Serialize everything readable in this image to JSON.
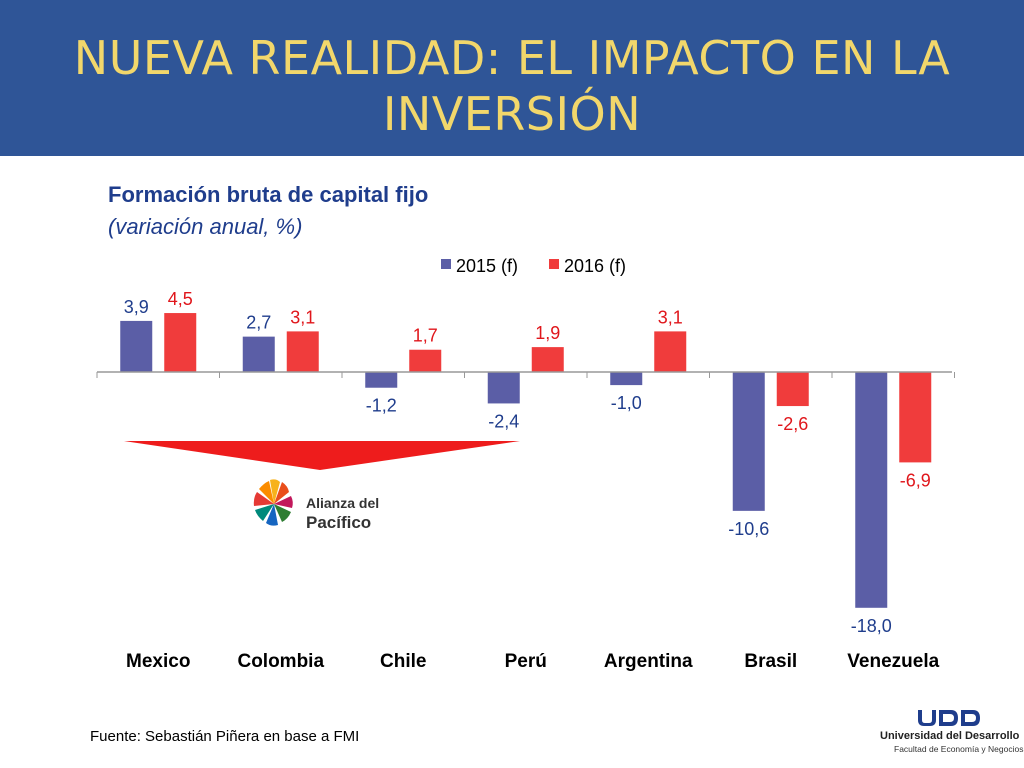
{
  "slide": {
    "title": "NUEVA REALIDAD: EL IMPACTO EN LA INVERSIÓN",
    "source": "Fuente: Sebastián Piñera en base a FMI"
  },
  "logos": {
    "alianza_line1": "Alianza del",
    "alianza_line2": "Pacífico",
    "udd_name": "Universidad del Desarrollo",
    "udd_sub": "Facultad de Economía y Negocios"
  },
  "colors": {
    "header_bg": "#2f5597",
    "title": "#f2d76b",
    "series_2015": "#5b5ea6",
    "series_2016": "#f03c3c",
    "label_2015": "#1f3d8c",
    "label_2016": "#e0161b",
    "arrow": "#ee1c1c"
  },
  "chart_data": {
    "type": "bar",
    "title": "Formación bruta de capital fijo",
    "subtitle": "(variación anual, %)",
    "categories": [
      "Mexico",
      "Colombia",
      "Chile",
      "Perú",
      "Argentina",
      "Brasil",
      "Venezuela"
    ],
    "series": [
      {
        "name": "2015 (f)",
        "values": [
          3.9,
          2.7,
          -1.2,
          -2.4,
          -1.0,
          -10.6,
          -18.0
        ],
        "labels": [
          "3,9",
          "2,7",
          "-1,2",
          "-2,4",
          "-1,0",
          "-10,6",
          "-18,0"
        ]
      },
      {
        "name": "2016 (f)",
        "values": [
          4.5,
          3.1,
          1.7,
          1.9,
          3.1,
          -2.6,
          -6.9
        ],
        "labels": [
          "4,5",
          "3,1",
          "1,7",
          "1,9",
          "3,1",
          "-2,6",
          "-6,9"
        ]
      }
    ],
    "legend_position": "top-center",
    "grid": false
  }
}
